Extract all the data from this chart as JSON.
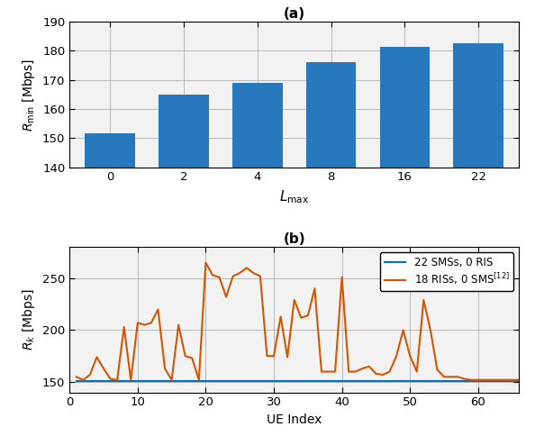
{
  "bar_categories": [
    0,
    2,
    4,
    8,
    16,
    22
  ],
  "bar_values": [
    151.5,
    165.0,
    169.0,
    176.0,
    181.5,
    182.5
  ],
  "bar_color": "#2878BE",
  "bar_ylim": [
    140,
    190
  ],
  "bar_yticks": [
    140,
    150,
    160,
    170,
    180,
    190
  ],
  "bar_ylabel": "$R_{\\mathrm{min}}$ [Mbps]",
  "bar_xlabel": "$L_{\\mathrm{max}}$",
  "bar_title": "(a)",
  "line_x": [
    1,
    2,
    3,
    4,
    5,
    6,
    7,
    8,
    9,
    10,
    11,
    12,
    13,
    14,
    15,
    16,
    17,
    18,
    19,
    20,
    21,
    22,
    23,
    24,
    25,
    26,
    27,
    28,
    29,
    30,
    31,
    32,
    33,
    34,
    35,
    36,
    37,
    38,
    39,
    40,
    41,
    42,
    43,
    44,
    45,
    46,
    47,
    48,
    49,
    50,
    51,
    52,
    53,
    54,
    55,
    56,
    57,
    58,
    59,
    60,
    61,
    62,
    63,
    64,
    65,
    66
  ],
  "blue_line": [
    151,
    151,
    151,
    151,
    151,
    151,
    151,
    151,
    151,
    151,
    151,
    151,
    151,
    151,
    151,
    151,
    151,
    151,
    151,
    151,
    151,
    151,
    151,
    151,
    151,
    151,
    151,
    151,
    151,
    151,
    151,
    151,
    151,
    151,
    151,
    151,
    151,
    151,
    151,
    151,
    151,
    151,
    151,
    151,
    151,
    151,
    151,
    151,
    151,
    151,
    151,
    151,
    151,
    151,
    151,
    151,
    151,
    151,
    151,
    151,
    151,
    151,
    151,
    151,
    151,
    151
  ],
  "orange_line": [
    155,
    152,
    157,
    174,
    163,
    153,
    152,
    203,
    152,
    207,
    205,
    207,
    220,
    163,
    152,
    205,
    175,
    173,
    152,
    265,
    253,
    251,
    232,
    252,
    255,
    260,
    255,
    252,
    175,
    175,
    213,
    174,
    229,
    212,
    214,
    240,
    160,
    160,
    160,
    251,
    160,
    160,
    163,
    165,
    158,
    157,
    160,
    175,
    200,
    175,
    160,
    229,
    200,
    162,
    155,
    155,
    155,
    153,
    152,
    152,
    152,
    152,
    152,
    152,
    152,
    152
  ],
  "line_ylim": [
    140,
    280
  ],
  "line_yticks": [
    150,
    200,
    250
  ],
  "line_ylabel": "$R_k$ [Mbps]",
  "line_xlabel": "UE Index",
  "line_title": "(b)",
  "line_xlim": [
    0,
    66
  ],
  "line_xticks": [
    0,
    10,
    20,
    30,
    40,
    50,
    60
  ],
  "legend_labels": [
    "22 SMSs, 0 RIS",
    "18 RISs, 0 SMS$^{[12]}$"
  ],
  "blue_color": "#0072BD",
  "orange_color": "#D45500",
  "grid_color": "#b0b0b0",
  "face_color": "#F2F2F2"
}
